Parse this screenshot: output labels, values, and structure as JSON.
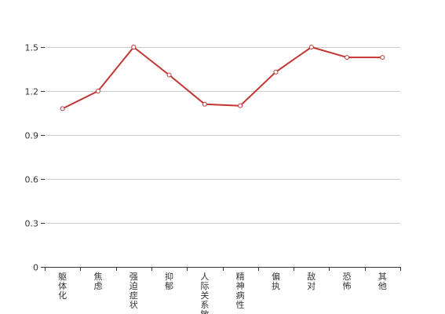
{
  "chart_data": {
    "type": "line",
    "title": "",
    "xlabel": "",
    "ylabel": "",
    "categories": [
      "躯体化",
      "焦虑",
      "强迫症状",
      "抑郁",
      "人际关系敏感",
      "精神病性",
      "偏执",
      "敌对",
      "恐怖",
      "其他"
    ],
    "series": [
      {
        "values": [
          1.08,
          1.2,
          1.5,
          1.31,
          1.11,
          1.1,
          1.33,
          1.5,
          1.43,
          1.43
        ]
      }
    ],
    "ylim": [
      0,
      1.5
    ],
    "yticks": [
      "0",
      "0.3",
      "0.6",
      "0.9",
      "1.2",
      "1.5"
    ],
    "grid": true,
    "colors": {
      "line": "#c23531",
      "grid": "#cccccc",
      "axis": "#333333"
    }
  }
}
